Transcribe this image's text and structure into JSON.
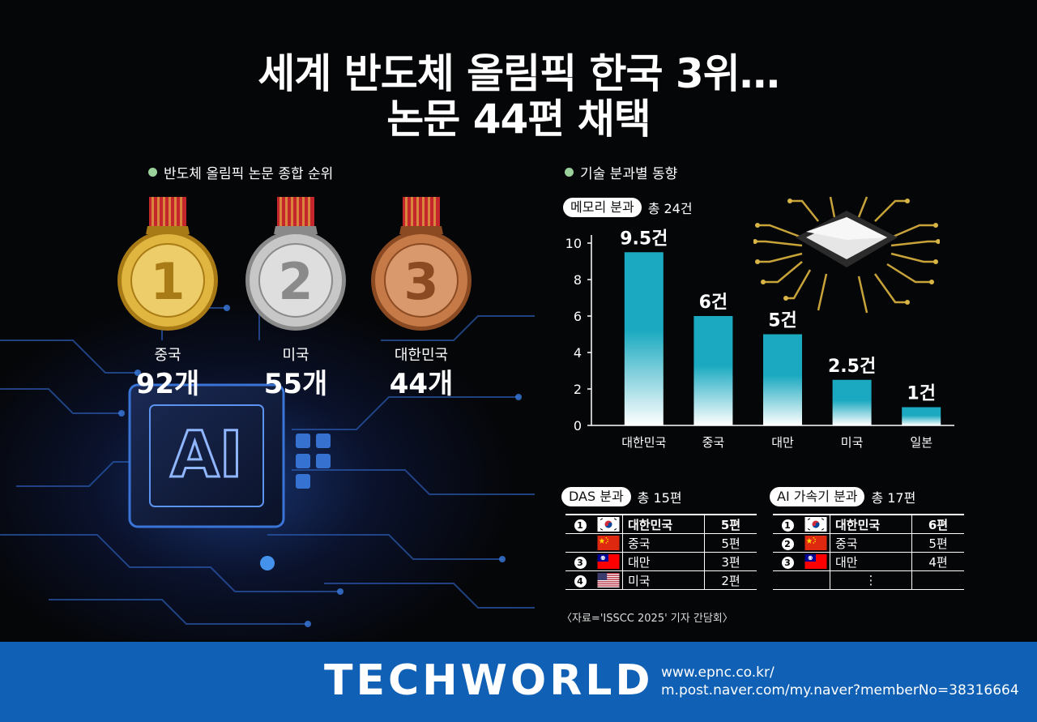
{
  "title": {
    "line1": "세계 반도체 올림픽 한국 3위…",
    "line2": "논문 44편 채택"
  },
  "ranking": {
    "label": "반도체 올림픽 논문 종합 순위",
    "medals": [
      {
        "rank": "1",
        "country": "중국",
        "count": "92개",
        "color": "#e0b640",
        "dark": "#a97b16",
        "light": "#f7e08a"
      },
      {
        "rank": "2",
        "country": "미국",
        "count": "55개",
        "color": "#c7c7c7",
        "dark": "#8a8a8a",
        "light": "#f0f0f0"
      },
      {
        "rank": "3",
        "country": "대한민국",
        "count": "44개",
        "color": "#c57a48",
        "dark": "#8b4a22",
        "light": "#e9b28a"
      }
    ],
    "ribbon_color": "#c4262c"
  },
  "chip_icon": "ai-chip-icon",
  "chip_text": "AI",
  "trend": {
    "label": "기술 분과별 동향",
    "memory": {
      "tag": "메모리 분과",
      "total": "총 24건"
    },
    "das": {
      "tag": "DAS 분과",
      "total": "총 15편",
      "rows": [
        {
          "rank": "1",
          "flag": "korea",
          "country": "대한민국",
          "value": "5편"
        },
        {
          "rank": "",
          "flag": "china",
          "country": "중국",
          "value": "5편"
        },
        {
          "rank": "3",
          "flag": "taiwan",
          "country": "대만",
          "value": "3편"
        },
        {
          "rank": "4",
          "flag": "usa",
          "country": "미국",
          "value": "2편"
        }
      ]
    },
    "ai": {
      "tag": "AI 가속기 분과",
      "total": "총 17편",
      "rows": [
        {
          "rank": "1",
          "flag": "korea",
          "country": "대한민국",
          "value": "6편"
        },
        {
          "rank": "2",
          "flag": "china",
          "country": "중국",
          "value": "5편"
        },
        {
          "rank": "3",
          "flag": "taiwan",
          "country": "대만",
          "value": "4편"
        },
        {
          "rank": "",
          "flag": "",
          "country": "⋮",
          "value": ""
        }
      ]
    }
  },
  "chart_data": {
    "type": "bar",
    "categories": [
      "대한민국",
      "중국",
      "대만",
      "미국",
      "일본"
    ],
    "values": [
      9.5,
      6,
      5,
      2.5,
      1
    ],
    "data_labels": [
      "9.5건",
      "6건",
      "5건",
      "2.5건",
      "1건"
    ],
    "yticks": [
      "0",
      "2",
      "4",
      "6",
      "8",
      "10"
    ],
    "ylim": [
      0,
      10
    ],
    "title": "",
    "xlabel": "",
    "ylabel": "",
    "grid": false,
    "colors": {
      "top": "#1aa9c0",
      "bottom": "#ffffff"
    }
  },
  "source": "〈자료='ISSCC 2025' 기자 간담회〉",
  "footer": {
    "logo": "TECHWORLD",
    "url1": "www.epnc.co.kr/",
    "url2": "m.post.naver.com/my.naver?memberNo=38316664",
    "color": "#1061b5"
  }
}
